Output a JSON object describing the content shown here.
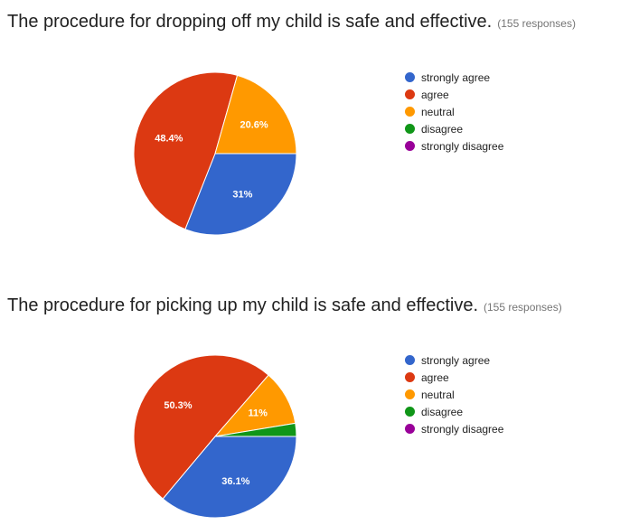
{
  "legend_labels": [
    "strongly agree",
    "agree",
    "neutral",
    "disagree",
    "strongly disagree"
  ],
  "colors": [
    "#3366cc",
    "#dc3912",
    "#ff9900",
    "#109618",
    "#990099"
  ],
  "chart_data": [
    {
      "type": "pie",
      "title": "The procedure for dropping off my child is safe and effective.",
      "subtitle": "(155 responses)",
      "categories": [
        "strongly agree",
        "agree",
        "neutral",
        "disagree",
        "strongly disagree"
      ],
      "values": [
        31,
        48.4,
        20.6,
        0,
        0
      ],
      "value_labels": [
        "31%",
        "48.4%",
        "20.6%",
        "",
        ""
      ],
      "legend_position": "right"
    },
    {
      "type": "pie",
      "title": "The procedure for picking up my child is safe and effective.",
      "subtitle": "(155 responses)",
      "categories": [
        "strongly agree",
        "agree",
        "neutral",
        "disagree",
        "strongly disagree"
      ],
      "values": [
        36.1,
        50.3,
        11,
        2.6,
        0
      ],
      "value_labels": [
        "36.1%",
        "50.3%",
        "11%",
        "",
        ""
      ],
      "legend_position": "right"
    }
  ]
}
